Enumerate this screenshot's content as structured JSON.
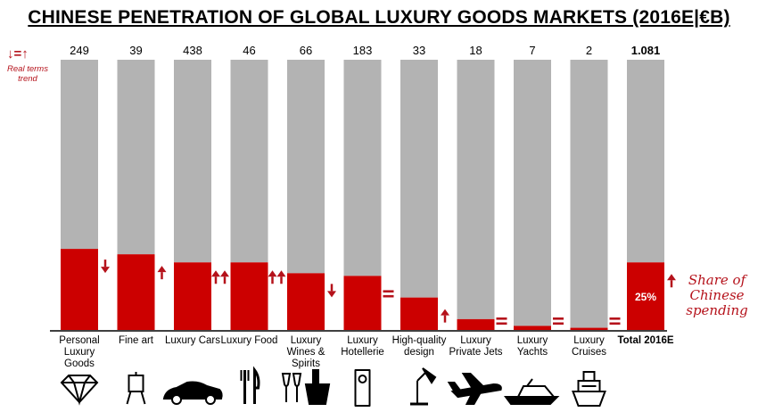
{
  "header": {
    "title": "CHINESE PENETRATION OF GLOBAL LUXURY GOODS MARKETS (2016E|€B)"
  },
  "legend": {
    "trend_symbols": "↓=↑",
    "trend_label": "Real terms trend",
    "share_label": "Share of Chinese spending"
  },
  "chart_data": {
    "type": "bar",
    "stacked": "100%",
    "categories": [
      "Personal Luxury Goods",
      "Fine art",
      "Luxury Cars",
      "Luxury Food",
      "Luxury Wines & Spirits",
      "Luxury Hotellerie",
      "High-quality design",
      "Luxury Private Jets",
      "Luxury Yachts",
      "Luxury Cruises",
      "Total 2016E"
    ],
    "market_size_labels": [
      "249",
      "39",
      "438",
      "46",
      "66",
      "183",
      "33",
      "18",
      "7",
      "2",
      "1.081"
    ],
    "series": [
      {
        "name": "Share of Chinese spending",
        "color": "#cc0000",
        "values": [
          30,
          28,
          25,
          25,
          21,
          20,
          12,
          4,
          1.5,
          0.8,
          25
        ]
      },
      {
        "color": "#b3b3b3",
        "values": [
          70,
          72,
          75,
          75,
          79,
          80,
          88,
          96,
          98.5,
          99.2,
          75
        ]
      }
    ],
    "trend": [
      "down",
      "up",
      "up-up",
      "up-up",
      "down",
      "equal",
      "up",
      "equal",
      "equal",
      "equal",
      "up"
    ],
    "data_labels": [
      {
        "category": "Total 2016E",
        "text": "25%"
      }
    ],
    "ylim": [
      0,
      100
    ],
    "icons": [
      "diamond-icon",
      "easel-icon",
      "car-icon",
      "cutlery-icon",
      "wine-glasses-icon",
      "door-hanger-icon",
      "desk-lamp-icon",
      "plane-icon",
      "yacht-icon",
      "cruise-ship-icon",
      ""
    ],
    "colors": {
      "china": "#cc0000",
      "rest": "#b3b3b3",
      "accent": "#b5121b"
    },
    "grid": false
  }
}
